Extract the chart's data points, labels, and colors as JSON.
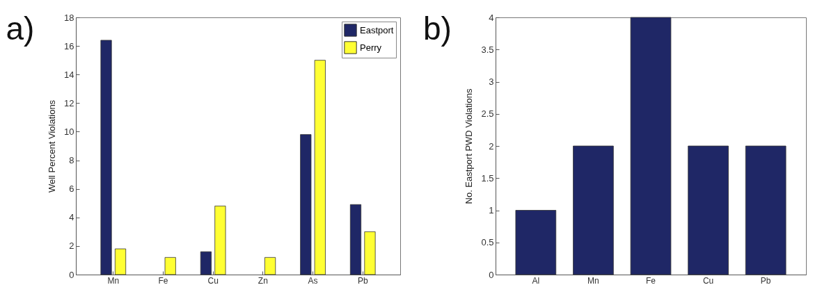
{
  "chart_data": [
    {
      "type": "bar",
      "title": "a)",
      "ylabel": "Well Percent Violations",
      "categories": [
        "Mn",
        "Fe",
        "Cu",
        "Zn",
        "As",
        "Pb"
      ],
      "series": [
        {
          "name": "Eastport",
          "color": "#1f2766",
          "values": [
            16.4,
            0,
            1.6,
            0,
            9.8,
            4.9
          ]
        },
        {
          "name": "Perry",
          "color": "#ffff33",
          "values": [
            1.8,
            1.2,
            4.8,
            1.2,
            15,
            3
          ]
        }
      ],
      "ylim": [
        0,
        18
      ],
      "yticks": [
        0,
        2,
        4,
        6,
        8,
        10,
        12,
        14,
        16,
        18
      ],
      "grid": false,
      "legend": "top right"
    },
    {
      "type": "bar",
      "title": "b)",
      "ylabel": "No. Eastport PWD Violations",
      "categories": [
        "Al",
        "Mn",
        "Fe",
        "Cu",
        "Pb"
      ],
      "values": [
        1,
        2,
        4,
        2,
        2
      ],
      "color": "#1f2766",
      "ylim": [
        0,
        4
      ],
      "yticks": [
        0,
        0.5,
        1,
        1.5,
        2,
        2.5,
        3,
        3.5,
        4
      ],
      "grid": false
    }
  ]
}
